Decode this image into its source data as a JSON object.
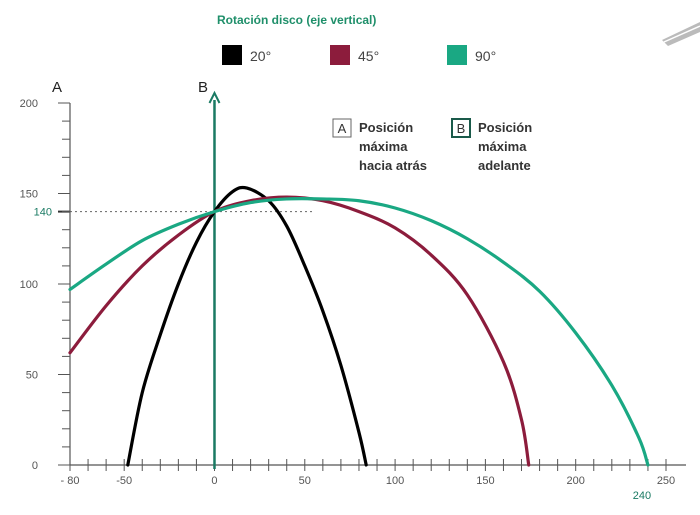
{
  "chart_data": {
    "type": "line",
    "title": "Rotación disco (eje vertical)",
    "xlabel": "",
    "ylabel": "",
    "xlim": [
      -80,
      250
    ],
    "ylim": [
      0,
      200
    ],
    "x_ticks": [
      -80,
      -50,
      0,
      50,
      100,
      150,
      200,
      250
    ],
    "x_tick_labels": [
      "- 80",
      "-50",
      "0",
      "50",
      "100",
      "150",
      "200",
      "250"
    ],
    "y_ticks": [
      0,
      50,
      100,
      150,
      200
    ],
    "y_tick_labels": [
      "0",
      "50",
      "100",
      "150",
      "200"
    ],
    "reference_marks": {
      "y_value": 140,
      "y_label": "140",
      "x_value": 240,
      "x_label": "240"
    },
    "axis_labels": {
      "left": "A",
      "vertical": "B"
    },
    "legend_position": "top-center",
    "series": [
      {
        "name": "20°",
        "color": "#000000",
        "x": [
          -48,
          -40,
          -30,
          -20,
          -10,
          0,
          10,
          18,
          30,
          40,
          50,
          60,
          70,
          80,
          84
        ],
        "y": [
          0,
          40,
          72,
          100,
          123,
          140,
          151,
          153,
          146,
          132,
          110,
          85,
          55,
          18,
          0
        ]
      },
      {
        "name": "45°",
        "color": "#8c1c3c",
        "x": [
          -80,
          -60,
          -40,
          -20,
          0,
          20,
          40,
          60,
          80,
          100,
          120,
          140,
          160,
          170,
          174
        ],
        "y": [
          62,
          88,
          110,
          127,
          140,
          146,
          148,
          146,
          140,
          131,
          116,
          94,
          57,
          25,
          0
        ]
      },
      {
        "name": "90°",
        "color": "#1aa883",
        "x": [
          -80,
          -60,
          -40,
          -20,
          0,
          20,
          40,
          60,
          80,
          100,
          120,
          140,
          160,
          180,
          200,
          220,
          235,
          240
        ],
        "y": [
          97,
          111,
          124,
          133,
          140,
          145,
          147,
          147,
          146,
          142,
          135,
          125,
          112,
          96,
          73,
          44,
          15,
          0
        ]
      }
    ],
    "annotations": [
      {
        "box": "A",
        "lines": [
          "Posición",
          "máxima",
          "hacia atrás"
        ]
      },
      {
        "box": "B",
        "lines": [
          "Posición",
          "máxima",
          "adelante"
        ]
      }
    ]
  }
}
